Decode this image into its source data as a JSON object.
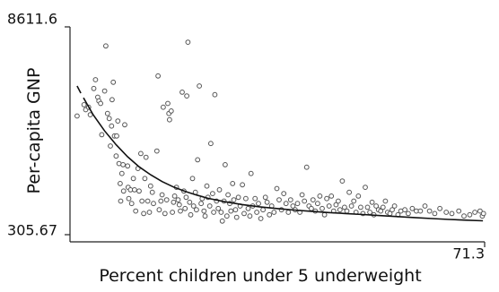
{
  "chart_data": {
    "type": "scatter",
    "title": "",
    "xlabel": "Percent children under 5 underweight",
    "ylabel": "Per-capita GNP",
    "xlim": [
      0,
      71.3
    ],
    "ylim": [
      305.67,
      8611.6
    ],
    "x_tick_labels": [
      "71.3"
    ],
    "y_tick_labels": [
      "8611.6",
      "305.67"
    ],
    "grid": false,
    "legend": "none",
    "colors": {
      "axis": "#222222",
      "point_stroke": "#555555",
      "point_fill": "#ffffff",
      "curve": "#111111"
    },
    "series": [
      {
        "kind": "points",
        "points": [
          [
            0.3,
            5050
          ],
          [
            1.5,
            5500
          ],
          [
            1.8,
            5300
          ],
          [
            2.3,
            5400
          ],
          [
            2.6,
            5100
          ],
          [
            3.2,
            6150
          ],
          [
            3.5,
            6500
          ],
          [
            3.9,
            5800
          ],
          [
            4.1,
            5650
          ],
          [
            4.4,
            5550
          ],
          [
            4.6,
            4300
          ],
          [
            5.1,
            6050
          ],
          [
            5.3,
            7850
          ],
          [
            5.6,
            5150
          ],
          [
            5.9,
            4950
          ],
          [
            6.1,
            3850
          ],
          [
            6.3,
            4650
          ],
          [
            6.4,
            5700
          ],
          [
            6.6,
            6400
          ],
          [
            6.8,
            4250
          ],
          [
            7.1,
            3450
          ],
          [
            7.2,
            4250
          ],
          [
            7.4,
            4850
          ],
          [
            7.6,
            3150
          ],
          [
            7.8,
            2350
          ],
          [
            7.9,
            1650
          ],
          [
            8.1,
            2750
          ],
          [
            8.3,
            3100
          ],
          [
            8.4,
            2050
          ],
          [
            8.6,
            4700
          ],
          [
            9.1,
            3050
          ],
          [
            9.2,
            2200
          ],
          [
            9.3,
            1750
          ],
          [
            9.6,
            2100
          ],
          [
            9.8,
            1550
          ],
          [
            10.1,
            2550
          ],
          [
            10.3,
            2100
          ],
          [
            10.5,
            1250
          ],
          [
            10.9,
            2950
          ],
          [
            11.1,
            2050
          ],
          [
            11.4,
            3550
          ],
          [
            11.6,
            1650
          ],
          [
            11.9,
            1150
          ],
          [
            12.1,
            2550
          ],
          [
            12.3,
            3400
          ],
          [
            12.6,
            1650
          ],
          [
            12.9,
            1200
          ],
          [
            13.1,
            2250
          ],
          [
            13.4,
            2000
          ],
          [
            13.6,
            1550
          ],
          [
            14.2,
            3650
          ],
          [
            14.4,
            6650
          ],
          [
            14.6,
            1300
          ],
          [
            14.9,
            1650
          ],
          [
            15.1,
            1900
          ],
          [
            15.3,
            5400
          ],
          [
            15.6,
            1150
          ],
          [
            15.9,
            1700
          ],
          [
            16.1,
            5550
          ],
          [
            16.3,
            5150
          ],
          [
            16.4,
            4900
          ],
          [
            16.7,
            5250
          ],
          [
            16.9,
            1200
          ],
          [
            17.1,
            1600
          ],
          [
            17.3,
            1850
          ],
          [
            17.6,
            2200
          ],
          [
            17.9,
            1700
          ],
          [
            18.1,
            1500
          ],
          [
            18.3,
            1250
          ],
          [
            18.6,
            6000
          ],
          [
            18.9,
            2050
          ],
          [
            19.1,
            1350
          ],
          [
            19.3,
            1800
          ],
          [
            19.4,
            5850
          ],
          [
            19.6,
            8000
          ],
          [
            19.9,
            1600
          ],
          [
            20.1,
            1100
          ],
          [
            20.4,
            2550
          ],
          [
            20.6,
            1450
          ],
          [
            20.9,
            2000
          ],
          [
            21.1,
            1300
          ],
          [
            21.3,
            3300
          ],
          [
            21.6,
            6250
          ],
          [
            21.9,
            1550
          ],
          [
            22.1,
            1750
          ],
          [
            22.4,
            1250
          ],
          [
            22.6,
            1050
          ],
          [
            22.9,
            2250
          ],
          [
            23.1,
            1800
          ],
          [
            23.4,
            1450
          ],
          [
            23.6,
            3950
          ],
          [
            23.9,
            1950
          ],
          [
            24.1,
            1200
          ],
          [
            24.3,
            5900
          ],
          [
            24.6,
            1650
          ],
          [
            24.9,
            1350
          ],
          [
            25.1,
            2100
          ],
          [
            25.4,
            1200
          ],
          [
            25.6,
            850
          ],
          [
            25.9,
            1650
          ],
          [
            26.1,
            3100
          ],
          [
            26.4,
            1050
          ],
          [
            26.6,
            1900
          ],
          [
            26.9,
            1550
          ],
          [
            27.1,
            1250
          ],
          [
            27.4,
            2350
          ],
          [
            27.6,
            1700
          ],
          [
            27.9,
            1300
          ],
          [
            28.1,
            1000
          ],
          [
            28.4,
            1800
          ],
          [
            28.7,
            1450
          ],
          [
            29.1,
            2300
          ],
          [
            29.4,
            1150
          ],
          [
            29.7,
            1750
          ],
          [
            30.1,
            1350
          ],
          [
            30.4,
            1050
          ],
          [
            30.6,
            2750
          ],
          [
            30.9,
            1450
          ],
          [
            31.3,
            1750
          ],
          [
            31.6,
            1200
          ],
          [
            31.9,
            1550
          ],
          [
            32.3,
            950
          ],
          [
            32.7,
            1300
          ],
          [
            33.1,
            1800
          ],
          [
            33.4,
            1600
          ],
          [
            33.8,
            1100
          ],
          [
            34.2,
            1450
          ],
          [
            34.6,
            1200
          ],
          [
            35.1,
            2150
          ],
          [
            35.5,
            1700
          ],
          [
            35.9,
            1300
          ],
          [
            36.3,
            1950
          ],
          [
            36.7,
            1550
          ],
          [
            37.1,
            1200
          ],
          [
            37.5,
            1700
          ],
          [
            37.9,
            1450
          ],
          [
            38.3,
            1300
          ],
          [
            38.7,
            1550
          ],
          [
            39.1,
            1200
          ],
          [
            39.5,
            1900
          ],
          [
            39.9,
            1650
          ],
          [
            40.3,
            3000
          ],
          [
            40.7,
            1450
          ],
          [
            41.1,
            1350
          ],
          [
            41.4,
            1700
          ],
          [
            41.8,
            1250
          ],
          [
            42.2,
            1550
          ],
          [
            42.6,
            1850
          ],
          [
            43.0,
            1350
          ],
          [
            43.4,
            1100
          ],
          [
            43.8,
            1750
          ],
          [
            44.2,
            1450
          ],
          [
            44.6,
            1850
          ],
          [
            45.0,
            1250
          ],
          [
            45.4,
            1500
          ],
          [
            45.8,
            1650
          ],
          [
            46.1,
            1300
          ],
          [
            46.5,
            2450
          ],
          [
            46.9,
            1400
          ],
          [
            47.3,
            1250
          ],
          [
            47.7,
            2000
          ],
          [
            48.1,
            1450
          ],
          [
            48.5,
            1650
          ],
          [
            48.9,
            1200
          ],
          [
            49.3,
            1850
          ],
          [
            49.7,
            1400
          ],
          [
            50.1,
            1150
          ],
          [
            50.5,
            2200
          ],
          [
            50.9,
            1400
          ],
          [
            51.3,
            1200
          ],
          [
            51.7,
            1600
          ],
          [
            52.0,
            1100
          ],
          [
            52.4,
            1450
          ],
          [
            52.8,
            1300
          ],
          [
            53.2,
            1250
          ],
          [
            53.6,
            1400
          ],
          [
            54.0,
            1650
          ],
          [
            54.4,
            1200
          ],
          [
            54.8,
            1150
          ],
          [
            55.2,
            1300
          ],
          [
            55.6,
            1450
          ],
          [
            56.2,
            1100
          ],
          [
            56.7,
            1250
          ],
          [
            57.4,
            1300
          ],
          [
            58.0,
            1150
          ],
          [
            58.7,
            1350
          ],
          [
            59.4,
            1250
          ],
          [
            60.1,
            1250
          ],
          [
            60.9,
            1450
          ],
          [
            61.7,
            1250
          ],
          [
            62.6,
            1150
          ],
          [
            63.5,
            1350
          ],
          [
            64.6,
            1200
          ],
          [
            65.6,
            1150
          ],
          [
            66.8,
            1250
          ],
          [
            67.7,
            1050
          ],
          [
            68.7,
            1100
          ],
          [
            69.6,
            1200
          ],
          [
            70.5,
            1250
          ],
          [
            70.9,
            1050
          ],
          [
            71.1,
            1150
          ]
        ]
      },
      {
        "kind": "fitted_curve",
        "points": [
          [
            0.3,
            6250
          ],
          [
            1.1,
            5900
          ],
          [
            2.1,
            5500
          ],
          [
            3.1,
            5100
          ],
          [
            5.1,
            4450
          ],
          [
            7.1,
            3900
          ],
          [
            9.1,
            3420
          ],
          [
            11.1,
            3020
          ],
          [
            13.1,
            2700
          ],
          [
            15.1,
            2430
          ],
          [
            17.1,
            2210
          ],
          [
            19.1,
            2040
          ],
          [
            21.1,
            1890
          ],
          [
            23.1,
            1760
          ],
          [
            26.1,
            1620
          ],
          [
            29.1,
            1510
          ],
          [
            32.1,
            1420
          ],
          [
            35.1,
            1350
          ],
          [
            38.1,
            1290
          ],
          [
            41.1,
            1240
          ],
          [
            44.1,
            1190
          ],
          [
            47.1,
            1150
          ],
          [
            50.1,
            1110
          ],
          [
            53.1,
            1070
          ],
          [
            56.1,
            1030
          ],
          [
            59.1,
            990
          ],
          [
            62.1,
            950
          ],
          [
            65.1,
            915
          ],
          [
            68.1,
            885
          ],
          [
            71.0,
            860
          ]
        ]
      }
    ]
  }
}
